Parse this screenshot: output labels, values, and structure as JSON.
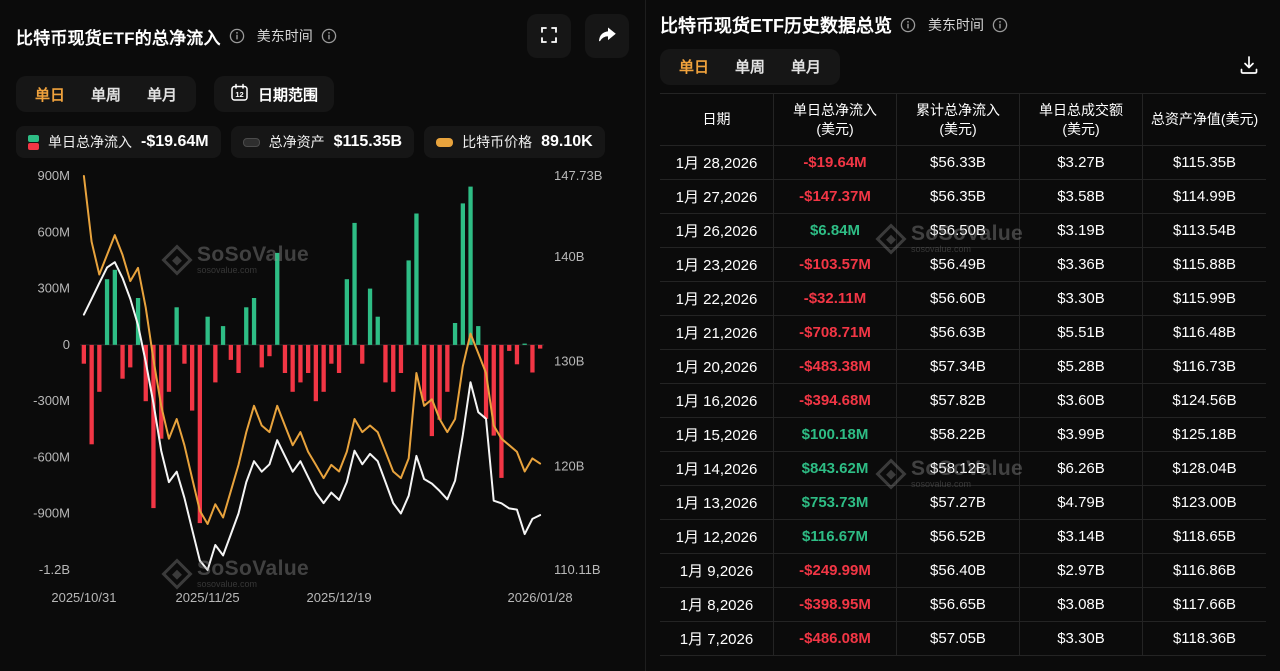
{
  "brand": {
    "watermark": "SoSoValue",
    "watermark_sub": "sosovalue.com"
  },
  "colors": {
    "accent_orange": "#f0a23c",
    "positive": "#2ebd85",
    "negative": "#f23645",
    "assets_line": "#f5f5f5",
    "price_line": "#e8a33d"
  },
  "left": {
    "title": "比特币现货ETF的总净流入",
    "timezone": "美东时间",
    "tabs": [
      {
        "label": "单日",
        "active": true
      },
      {
        "label": "单周",
        "active": false
      },
      {
        "label": "单月",
        "active": false
      }
    ],
    "date_range": "日期范围",
    "date_icon_text": "12",
    "legend": [
      {
        "label": "单日总净流入",
        "value": "-$19.64M",
        "icon": "flow-bars-icon"
      },
      {
        "label": "总净资产",
        "value": "$115.35B",
        "icon": "assets-pill-icon"
      },
      {
        "label": "比特币价格",
        "value": "89.10K",
        "icon": "price-pill-icon"
      }
    ]
  },
  "right": {
    "title": "比特币现货ETF历史数据总览",
    "timezone": "美东时间",
    "tabs": [
      {
        "label": "单日",
        "active": true
      },
      {
        "label": "单周",
        "active": false
      },
      {
        "label": "单月",
        "active": false
      }
    ]
  },
  "table": {
    "columns": [
      {
        "title": "日期",
        "unit": ""
      },
      {
        "title": "单日总净流入",
        "unit": "(美元)"
      },
      {
        "title": "累计总净流入",
        "unit": "(美元)"
      },
      {
        "title": "单日总成交额",
        "unit": "(美元)"
      },
      {
        "title": "总资产净值(美元)",
        "unit": ""
      }
    ],
    "rows": [
      {
        "date": "1月 28,2026",
        "flow": "-$19.64M",
        "flow_dir": "neg",
        "cum": "$56.33B",
        "vol": "$3.27B",
        "nav": "$115.35B"
      },
      {
        "date": "1月 27,2026",
        "flow": "-$147.37M",
        "flow_dir": "neg",
        "cum": "$56.35B",
        "vol": "$3.58B",
        "nav": "$114.99B"
      },
      {
        "date": "1月 26,2026",
        "flow": "$6.84M",
        "flow_dir": "pos",
        "cum": "$56.50B",
        "vol": "$3.19B",
        "nav": "$113.54B"
      },
      {
        "date": "1月 23,2026",
        "flow": "-$103.57M",
        "flow_dir": "neg",
        "cum": "$56.49B",
        "vol": "$3.36B",
        "nav": "$115.88B"
      },
      {
        "date": "1月 22,2026",
        "flow": "-$32.11M",
        "flow_dir": "neg",
        "cum": "$56.60B",
        "vol": "$3.30B",
        "nav": "$115.99B"
      },
      {
        "date": "1月 21,2026",
        "flow": "-$708.71M",
        "flow_dir": "neg",
        "cum": "$56.63B",
        "vol": "$5.51B",
        "nav": "$116.48B"
      },
      {
        "date": "1月 20,2026",
        "flow": "-$483.38M",
        "flow_dir": "neg",
        "cum": "$57.34B",
        "vol": "$5.28B",
        "nav": "$116.73B"
      },
      {
        "date": "1月 16,2026",
        "flow": "-$394.68M",
        "flow_dir": "neg",
        "cum": "$57.82B",
        "vol": "$3.60B",
        "nav": "$124.56B"
      },
      {
        "date": "1月 15,2026",
        "flow": "$100.18M",
        "flow_dir": "pos",
        "cum": "$58.22B",
        "vol": "$3.99B",
        "nav": "$125.18B"
      },
      {
        "date": "1月 14,2026",
        "flow": "$843.62M",
        "flow_dir": "pos",
        "cum": "$58.12B",
        "vol": "$6.26B",
        "nav": "$128.04B"
      },
      {
        "date": "1月 13,2026",
        "flow": "$753.73M",
        "flow_dir": "pos",
        "cum": "$57.27B",
        "vol": "$4.79B",
        "nav": "$123.00B"
      },
      {
        "date": "1月 12,2026",
        "flow": "$116.67M",
        "flow_dir": "pos",
        "cum": "$56.52B",
        "vol": "$3.14B",
        "nav": "$118.65B"
      },
      {
        "date": "1月 9,2026",
        "flow": "-$249.99M",
        "flow_dir": "neg",
        "cum": "$56.40B",
        "vol": "$2.97B",
        "nav": "$116.86B"
      },
      {
        "date": "1月 8,2026",
        "flow": "-$398.95M",
        "flow_dir": "neg",
        "cum": "$56.65B",
        "vol": "$3.08B",
        "nav": "$117.66B"
      },
      {
        "date": "1月 7,2026",
        "flow": "-$486.08M",
        "flow_dir": "neg",
        "cum": "$57.05B",
        "vol": "$3.30B",
        "nav": "$118.36B"
      }
    ]
  },
  "chart_data": {
    "type": "combo-bar-line",
    "title": "比特币现货ETF的总净流入",
    "x_ticks": [
      {
        "label": "2025/10/31",
        "index": 0
      },
      {
        "label": "2025/11/25",
        "index": 16
      },
      {
        "label": "2025/12/19",
        "index": 33
      },
      {
        "label": "2026/01/28",
        "index": 59
      }
    ],
    "left_axis": {
      "unit": "USD",
      "max": 900,
      "min": -1200,
      "ticks": [
        {
          "label": "900M",
          "value": 900
        },
        {
          "label": "600M",
          "value": 600
        },
        {
          "label": "300M",
          "value": 300
        },
        {
          "label": "0",
          "value": 0
        },
        {
          "label": "-300M",
          "value": -300
        },
        {
          "label": "-600M",
          "value": -600
        },
        {
          "label": "-900M",
          "value": -900
        },
        {
          "label": "-1.2B",
          "value": -1200
        }
      ]
    },
    "right_axis": {
      "unit": "USD B",
      "max": 147.73,
      "min": 110.11,
      "ticks": [
        {
          "label": "147.73B",
          "value": 147.73
        },
        {
          "label": "140B",
          "value": 140
        },
        {
          "label": "130B",
          "value": 130
        },
        {
          "label": "120B",
          "value": 120
        },
        {
          "label": "110.11B",
          "value": 110.11
        }
      ]
    },
    "price_axis": {
      "unit": "USD K",
      "max": 111,
      "min": 81
    },
    "series": [
      {
        "name": "单日总净流入",
        "type": "bar",
        "unit": "USD M",
        "values": [
          -100,
          -530,
          -250,
          350,
          400,
          -180,
          -120,
          250,
          -300,
          -870,
          -500,
          -250,
          200,
          -100,
          -350,
          -950,
          150,
          -200,
          100,
          -80,
          -150,
          200,
          250,
          -120,
          -60,
          490,
          -150,
          -250,
          -200,
          -150,
          -300,
          -250,
          -100,
          -150,
          350,
          650,
          -100,
          300,
          150,
          -200,
          -250,
          -150,
          450,
          700,
          -300,
          -486.08,
          -398.95,
          -249.99,
          116.67,
          753.73,
          843.62,
          100.18,
          -394.68,
          -483.38,
          -708.71,
          -32.11,
          -103.57,
          6.84,
          -147.37,
          -19.64
        ]
      },
      {
        "name": "总净资产",
        "type": "line",
        "unit": "USD B",
        "values": [
          134.5,
          136,
          137.5,
          139,
          139.5,
          138,
          136,
          133.5,
          130,
          126,
          121.5,
          118.5,
          119.5,
          117,
          114,
          111,
          110.11,
          112.5,
          111.5,
          113.5,
          115.5,
          118.5,
          120.5,
          119.5,
          120.2,
          122.5,
          121,
          119.5,
          120.5,
          119,
          117.5,
          116.5,
          117.5,
          116.8,
          118.5,
          121.5,
          120.2,
          121.2,
          120.5,
          118.5,
          116.5,
          115.5,
          117.2,
          121,
          118.8,
          118.36,
          117.66,
          116.86,
          118.65,
          123.0,
          128.04,
          125.18,
          124.56,
          116.73,
          116.48,
          115.99,
          115.88,
          113.54,
          114.99,
          115.35
        ]
      },
      {
        "name": "比特币价格",
        "type": "line",
        "unit": "USD K",
        "values": [
          111,
          106,
          103.5,
          105,
          106.5,
          105,
          103,
          104,
          101,
          97,
          93.5,
          91,
          92.5,
          90.5,
          88,
          85.5,
          84.5,
          86,
          85,
          87,
          89,
          91.5,
          93.5,
          92,
          91.5,
          93.5,
          92,
          90.5,
          91.5,
          90,
          89,
          88,
          89,
          88.5,
          90,
          92.5,
          91.5,
          92,
          91.5,
          90,
          88.5,
          88,
          89.5,
          96,
          93.5,
          94,
          92.5,
          91.5,
          92.5,
          96.5,
          99,
          97.5,
          96,
          92,
          91,
          90.5,
          90,
          88.5,
          89.5,
          89.1
        ]
      }
    ],
    "colors": {
      "positive": "#2ebd85",
      "negative": "#f23645",
      "assets": "#f5f5f5",
      "price": "#e8a33d"
    },
    "legend_position": "top-left",
    "grid": false
  }
}
